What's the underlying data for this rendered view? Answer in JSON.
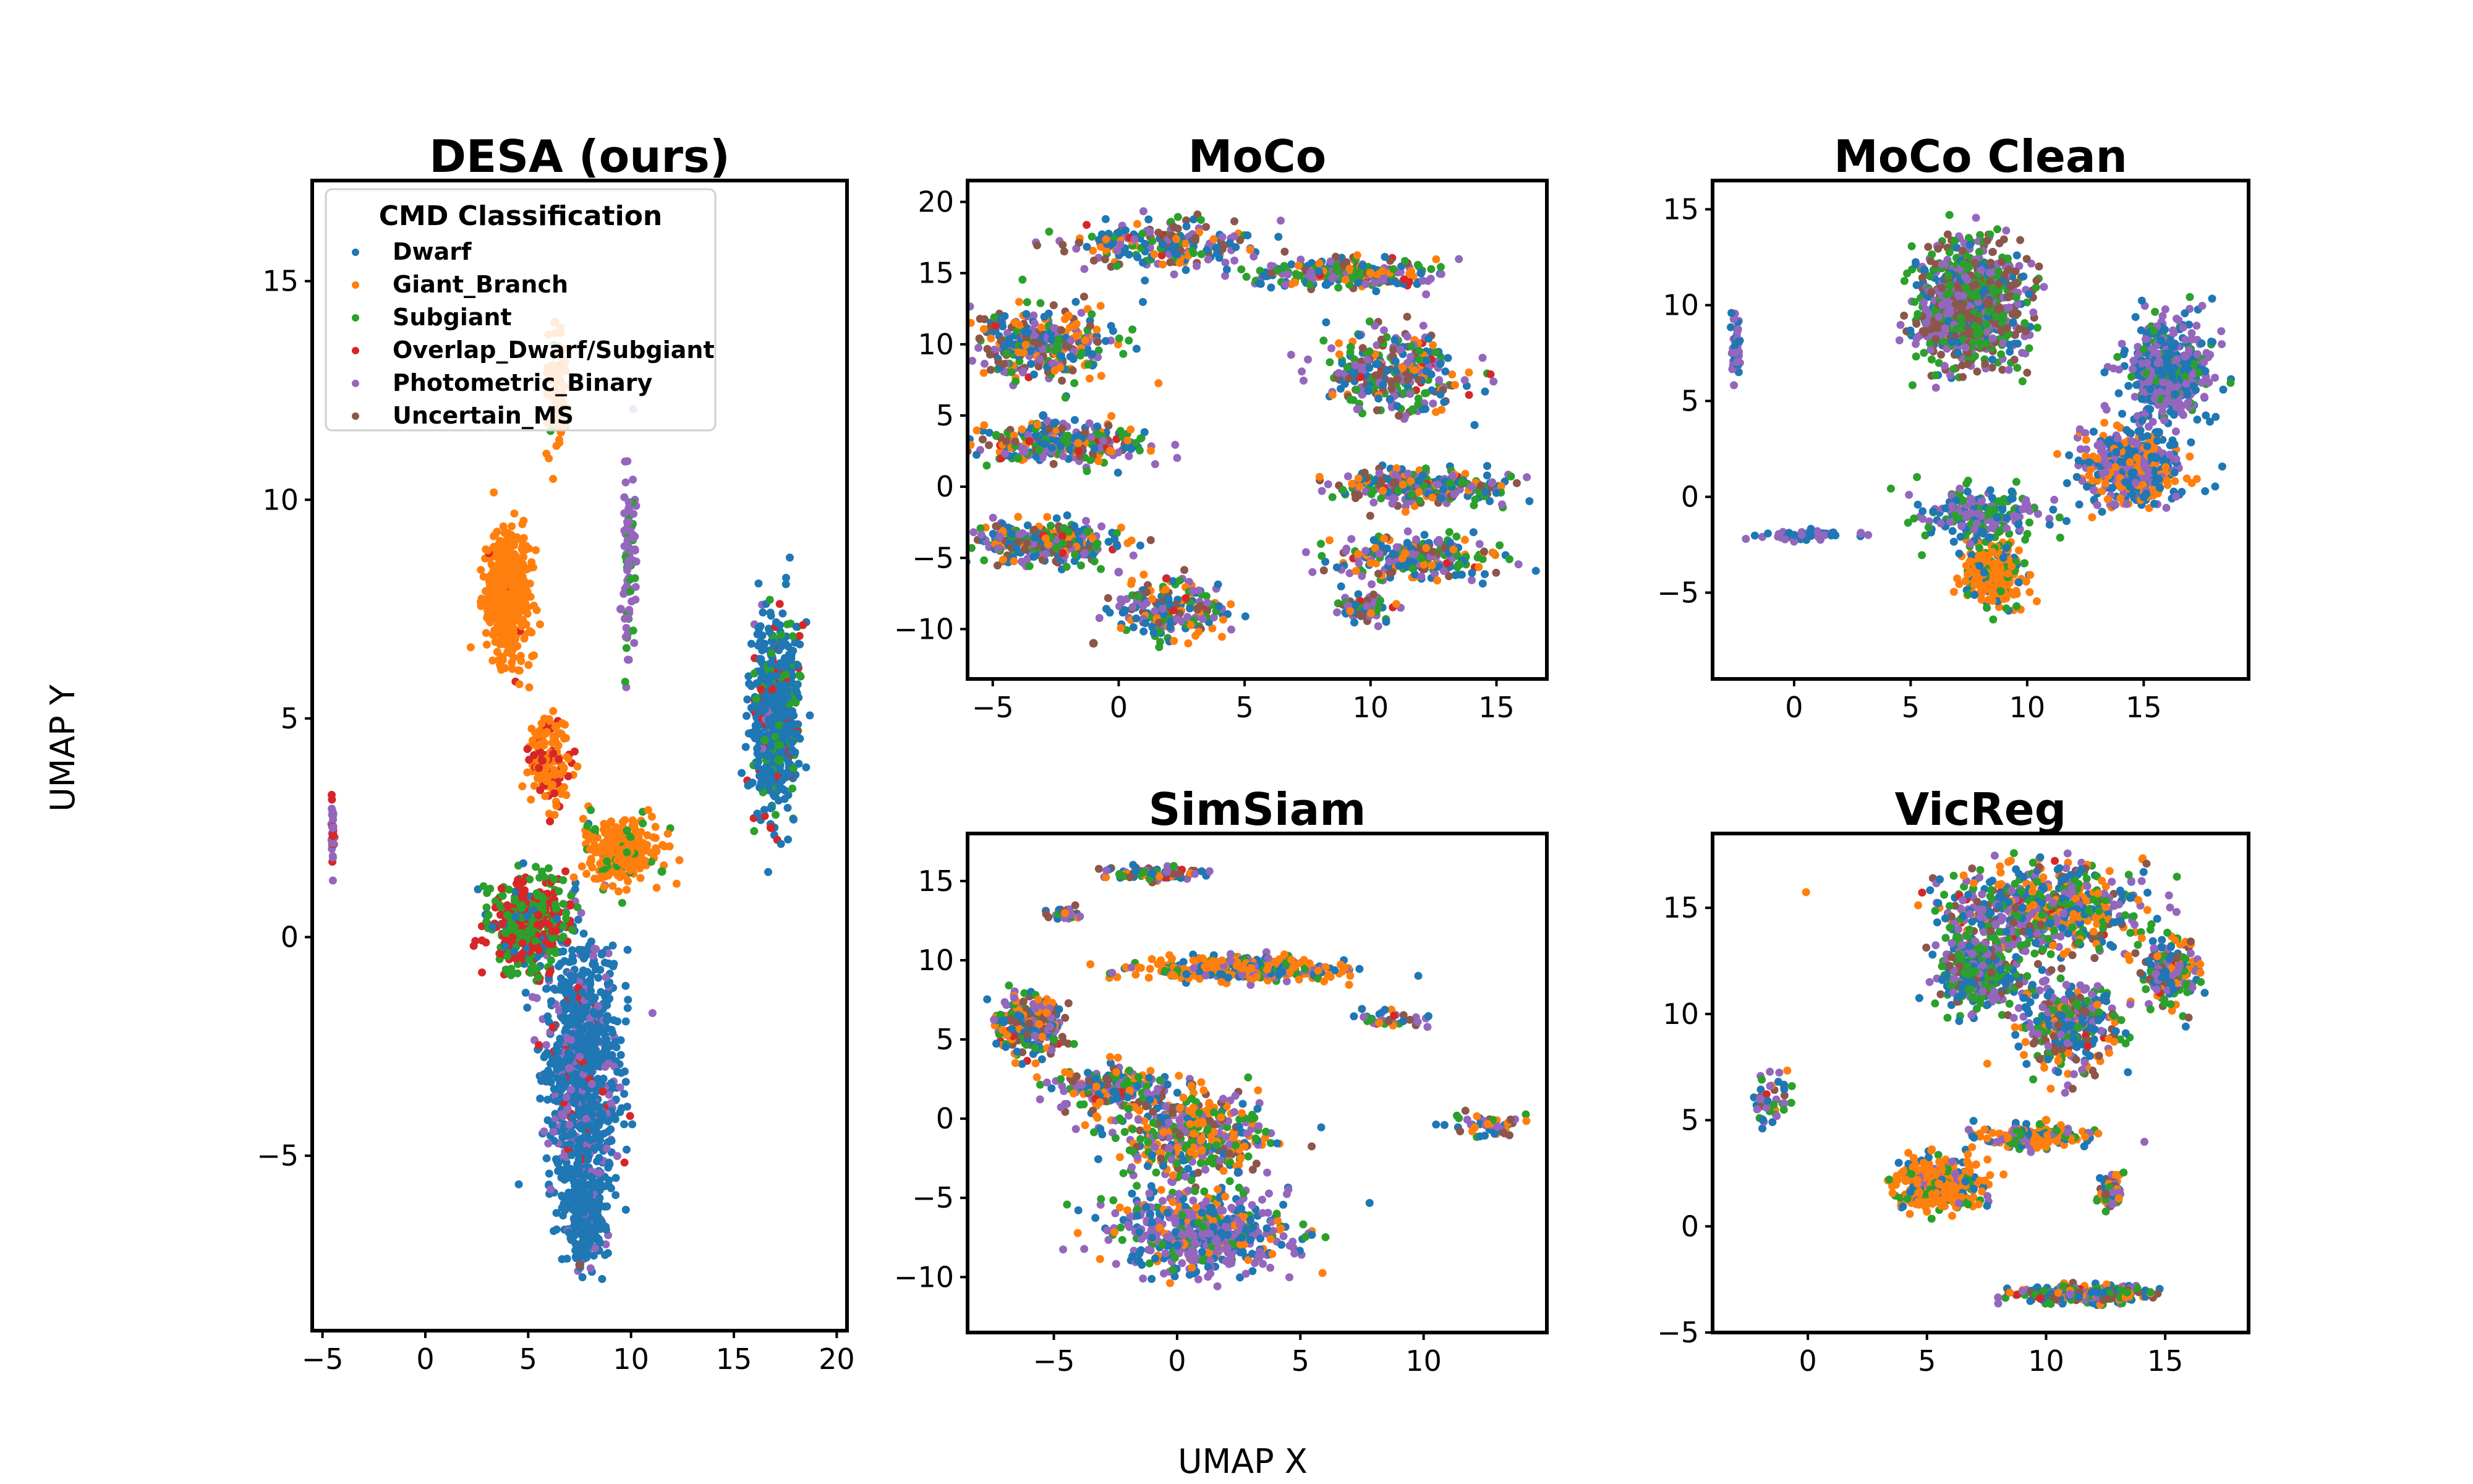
{
  "figure": {
    "xlabel": "UMAP X",
    "ylabel": "UMAP Y"
  },
  "legend": {
    "title": "CMD Classification",
    "placement": "upper-left of first panel"
  },
  "colors": {
    "Dwarf": "#1f77b4",
    "Giant_Branch": "#ff7f0e",
    "Subgiant": "#2ca02c",
    "Overlap_Dwarf/Subgiant": "#d62728",
    "Photometric_Binary": "#9467bd",
    "Uncertain_MS": "#8c564b"
  },
  "chart_data": [
    {
      "type": "scatter",
      "title": "DESA (ours)",
      "xlim": [
        -5.5,
        20.5
      ],
      "ylim": [
        -9,
        17.3
      ],
      "xticks": [
        -5,
        0,
        5,
        10,
        15,
        20
      ],
      "yticks": [
        -5,
        0,
        5,
        10,
        15
      ],
      "series": [
        {
          "name": "Dwarf",
          "values": [
            [
              17.0,
              5.5
            ],
            [
              7.8,
              -3.0
            ],
            [
              8.0,
              -1.0
            ]
          ]
        },
        {
          "name": "Giant_Branch",
          "values": [
            [
              3.8,
              8.0
            ],
            [
              9.0,
              2.0
            ],
            [
              6.5,
              13.5
            ]
          ]
        },
        {
          "name": "Subgiant",
          "values": [
            [
              4.0,
              0.5
            ],
            [
              16.5,
              4.5
            ],
            [
              11.5,
              1.5
            ]
          ]
        },
        {
          "name": "Overlap_Dwarf/Subgiant",
          "values": [
            [
              5.5,
              0.5
            ],
            [
              16.8,
              2.5
            ]
          ]
        },
        {
          "name": "Photometric_Binary",
          "values": [
            [
              7.0,
              -3.0
            ],
            [
              9.5,
              7.5
            ],
            [
              -4.5,
              2.5
            ]
          ]
        },
        {
          "name": "Uncertain_MS",
          "values": [
            [
              7.5,
              -7.5
            ]
          ]
        }
      ]
    },
    {
      "type": "scatter",
      "title": "MoCo",
      "xlim": [
        -6,
        17
      ],
      "ylim": [
        -13.5,
        21.5
      ],
      "xticks": [
        -5,
        0,
        5,
        10,
        15
      ],
      "yticks": [
        -10,
        -5,
        0,
        5,
        10,
        15,
        20
      ],
      "series": [
        {
          "name": "Dwarf",
          "values": [
            [
              -3,
              5
            ],
            [
              12,
              15
            ]
          ]
        },
        {
          "name": "Giant_Branch",
          "values": [
            [
              10,
              15
            ],
            [
              -2,
              12
            ]
          ]
        },
        {
          "name": "Subgiant",
          "values": [
            [
              -4,
              2
            ],
            [
              12,
              -5
            ]
          ]
        },
        {
          "name": "Photometric_Binary",
          "values": [
            [
              0,
              -6
            ],
            [
              14,
              0
            ]
          ]
        },
        {
          "name": "Uncertain_MS",
          "values": [
            [
              -1,
              -11
            ]
          ]
        }
      ]
    },
    {
      "type": "scatter",
      "title": "MoCo Clean",
      "xlim": [
        -3.5,
        19.5
      ],
      "ylim": [
        -9.5,
        16.5
      ],
      "xticks": [
        0,
        5,
        10,
        15
      ],
      "yticks": [
        -5,
        0,
        5,
        10,
        15
      ],
      "series": [
        {
          "name": "Dwarf",
          "values": [
            [
              15,
              0
            ],
            [
              16,
              7
            ]
          ]
        },
        {
          "name": "Giant_Branch",
          "values": [
            [
              8.5,
              -5
            ],
            [
              13,
              2
            ]
          ]
        },
        {
          "name": "Subgiant",
          "values": [
            [
              7.5,
              12
            ],
            [
              8,
              8
            ]
          ]
        },
        {
          "name": "Photometric_Binary",
          "values": [
            [
              -2.5,
              7.5
            ],
            [
              16,
              5
            ]
          ]
        },
        {
          "name": "Uncertain_MS",
          "values": [
            [
              7,
              10
            ]
          ]
        }
      ]
    },
    {
      "type": "scatter",
      "title": "SimSiam",
      "xlim": [
        -8.5,
        15
      ],
      "ylim": [
        -13.5,
        18
      ],
      "xticks": [
        -5,
        0,
        5,
        10
      ],
      "yticks": [
        -10,
        -5,
        0,
        5,
        10,
        15
      ],
      "series": [
        {
          "name": "Dwarf",
          "values": [
            [
              0,
              -8
            ],
            [
              -1,
              15.5
            ]
          ]
        },
        {
          "name": "Giant_Branch",
          "values": [
            [
              3,
              9.5
            ],
            [
              1,
              -2
            ]
          ]
        },
        {
          "name": "Subgiant",
          "values": [
            [
              -5,
              5
            ],
            [
              3,
              0
            ]
          ]
        },
        {
          "name": "Photometric_Binary",
          "values": [
            [
              2,
              -9
            ],
            [
              13,
              -0.5
            ]
          ]
        },
        {
          "name": "Uncertain_MS",
          "values": [
            [
              -6,
              6
            ]
          ]
        }
      ]
    },
    {
      "type": "scatter",
      "title": "VicReg",
      "xlim": [
        -4,
        18.5
      ],
      "ylim": [
        -5,
        18.5
      ],
      "xticks": [
        0,
        5,
        10,
        15
      ],
      "yticks": [
        -5,
        0,
        5,
        10,
        15
      ],
      "series": [
        {
          "name": "Dwarf",
          "values": [
            [
              9,
              15
            ],
            [
              15,
              12
            ]
          ]
        },
        {
          "name": "Giant_Branch",
          "values": [
            [
              5.5,
              2
            ],
            [
              10,
              5
            ]
          ]
        },
        {
          "name": "Subgiant",
          "values": [
            [
              7,
              12
            ],
            [
              11,
              10
            ]
          ]
        },
        {
          "name": "Photometric_Binary",
          "values": [
            [
              11,
              -3.2
            ],
            [
              -2,
              6
            ]
          ]
        },
        {
          "name": "Uncertain_MS",
          "values": [
            [
              12.5,
              1.5
            ]
          ]
        }
      ]
    }
  ]
}
